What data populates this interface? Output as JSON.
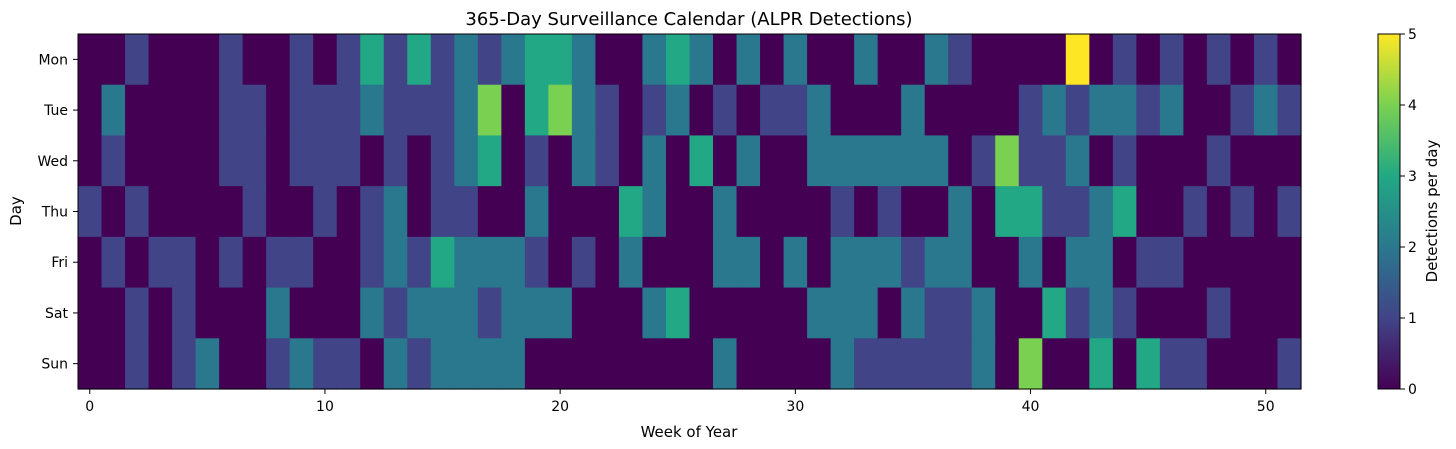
{
  "chart_data": {
    "type": "heatmap",
    "title": "365-Day Surveillance Calendar (ALPR Detections)",
    "xlabel": "Week of Year",
    "ylabel": "Day",
    "colorbar_label": "Detections per day",
    "colormap": "viridis",
    "rows": [
      "Mon",
      "Tue",
      "Wed",
      "Thu",
      "Fri",
      "Sat",
      "Sun"
    ],
    "x_ticks": [
      0,
      10,
      20,
      30,
      40,
      50
    ],
    "colorbar_ticks": [
      0,
      1,
      2,
      3,
      4,
      5
    ],
    "vmin": 0,
    "vmax": 5,
    "weeks": 52,
    "values": [
      [
        0,
        0,
        1,
        0,
        0,
        0,
        1,
        0,
        0,
        1,
        0,
        1,
        3,
        1,
        3,
        1,
        2,
        1,
        2,
        3,
        3,
        2,
        0,
        0,
        2,
        3,
        2,
        0,
        2,
        0,
        2,
        0,
        0,
        2,
        0,
        0,
        2,
        1,
        0,
        0,
        0,
        0,
        5,
        0,
        1,
        0,
        1,
        0,
        1,
        0,
        1,
        0
      ],
      [
        0,
        2,
        0,
        0,
        0,
        0,
        1,
        1,
        0,
        1,
        1,
        1,
        2,
        1,
        1,
        1,
        2,
        4,
        0,
        3,
        4,
        2,
        1,
        0,
        1,
        2,
        0,
        1,
        0,
        1,
        1,
        2,
        0,
        0,
        0,
        2,
        0,
        0,
        0,
        0,
        1,
        2,
        1,
        2,
        2,
        1,
        2,
        0,
        0,
        1,
        2,
        1
      ],
      [
        0,
        1,
        0,
        0,
        0,
        0,
        1,
        1,
        0,
        1,
        1,
        1,
        0,
        1,
        0,
        1,
        2,
        3,
        0,
        1,
        0,
        2,
        1,
        0,
        2,
        0,
        3,
        0,
        2,
        0,
        0,
        2,
        2,
        2,
        2,
        2,
        2,
        0,
        1,
        4,
        1,
        1,
        2,
        0,
        1,
        0,
        0,
        0,
        1,
        0,
        0,
        0
      ],
      [
        1,
        0,
        1,
        0,
        0,
        0,
        0,
        1,
        0,
        0,
        1,
        0,
        1,
        2,
        0,
        1,
        1,
        0,
        0,
        2,
        0,
        0,
        0,
        3,
        2,
        0,
        0,
        2,
        0,
        0,
        0,
        0,
        1,
        0,
        1,
        0,
        0,
        2,
        0,
        3,
        3,
        1,
        1,
        2,
        3,
        0,
        0,
        1,
        0,
        1,
        0,
        1
      ],
      [
        0,
        1,
        0,
        1,
        1,
        0,
        1,
        0,
        1,
        1,
        0,
        0,
        1,
        2,
        1,
        3,
        2,
        2,
        2,
        1,
        0,
        1,
        0,
        2,
        0,
        0,
        0,
        2,
        2,
        0,
        2,
        0,
        2,
        2,
        2,
        1,
        2,
        2,
        0,
        0,
        2,
        0,
        2,
        2,
        0,
        1,
        1,
        0,
        0,
        0,
        0,
        0
      ],
      [
        0,
        0,
        1,
        0,
        1,
        0,
        0,
        0,
        2,
        0,
        0,
        0,
        2,
        1,
        2,
        2,
        2,
        1,
        2,
        2,
        2,
        0,
        0,
        0,
        2,
        3,
        0,
        0,
        0,
        0,
        0,
        2,
        2,
        2,
        0,
        2,
        1,
        1,
        2,
        0,
        0,
        3,
        1,
        2,
        1,
        0,
        0,
        0,
        1,
        0,
        0,
        0
      ],
      [
        0,
        0,
        1,
        0,
        1,
        2,
        0,
        0,
        1,
        2,
        1,
        1,
        0,
        2,
        1,
        2,
        2,
        2,
        2,
        0,
        0,
        0,
        0,
        0,
        0,
        0,
        0,
        2,
        0,
        0,
        0,
        0,
        2,
        1,
        1,
        1,
        1,
        1,
        2,
        0,
        4,
        0,
        0,
        3,
        0,
        3,
        1,
        1,
        0,
        0,
        0,
        1
      ]
    ]
  }
}
